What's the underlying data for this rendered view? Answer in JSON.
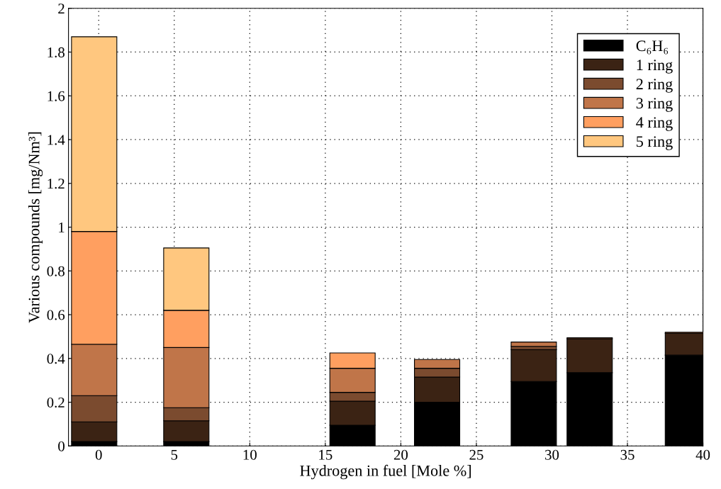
{
  "chart_data": {
    "type": "bar",
    "stacked": true,
    "xlabel": "Hydrogen in fuel [Mole %]",
    "ylabel": "Various compounds [mg/Nm³]",
    "x": [
      -0.3,
      5.8,
      16.8,
      22.4,
      28.8,
      32.5,
      39
    ],
    "series": [
      {
        "name": "C₆H₆",
        "color": "#000000",
        "values": [
          0.02,
          0.02,
          0.095,
          0.2,
          0.295,
          0.335,
          0.415
        ]
      },
      {
        "name": "1 ring",
        "color": "#3b2314",
        "values": [
          0.09,
          0.095,
          0.11,
          0.115,
          0.145,
          0.155,
          0.1
        ]
      },
      {
        "name": "2 ring",
        "color": "#7b4b2f",
        "values": [
          0.12,
          0.06,
          0.04,
          0.04,
          0.015,
          0.005,
          0.005
        ]
      },
      {
        "name": "3 ring",
        "color": "#c07549",
        "values": [
          0.235,
          0.275,
          0.11,
          0.04,
          0.02,
          null,
          null
        ]
      },
      {
        "name": "4 ring",
        "color": "#ff9f60",
        "values": [
          0.515,
          0.17,
          0.07,
          null,
          null,
          null,
          null
        ]
      },
      {
        "name": "5 ring",
        "color": "#ffc77f",
        "values": [
          0.89,
          0.285,
          null,
          null,
          null,
          null,
          null
        ]
      }
    ],
    "xlim": [
      -2,
      40
    ],
    "xticks": [
      0,
      5,
      10,
      15,
      20,
      25,
      30,
      35,
      40
    ],
    "ylim": [
      0,
      2
    ],
    "yticks": [
      0,
      0.2,
      0.4,
      0.6,
      0.8,
      1,
      1.2,
      1.4,
      1.6,
      1.8,
      2
    ],
    "grid": true,
    "legend": "top right"
  }
}
